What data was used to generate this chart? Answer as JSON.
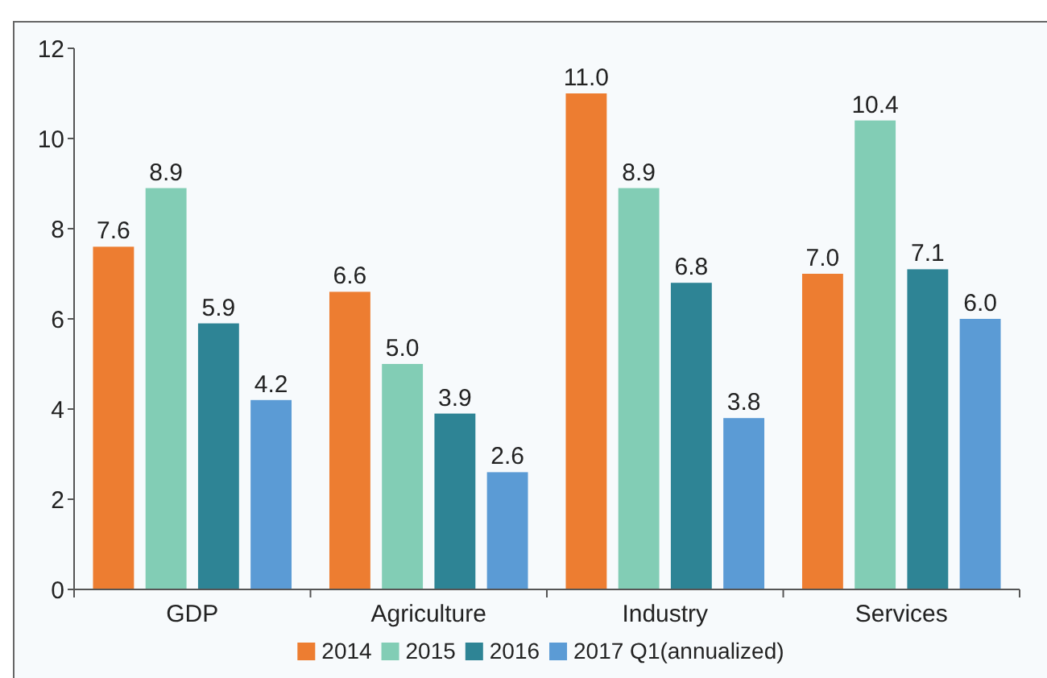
{
  "chart_data": {
    "type": "bar",
    "categories": [
      "GDP",
      "Agriculture",
      "Industry",
      "Services"
    ],
    "series": [
      {
        "name": "2014",
        "color": "#ed7d31",
        "values": [
          7.6,
          6.6,
          11.0,
          7.0
        ],
        "value_labels": [
          "7.6",
          "6.6",
          "11.0",
          "7.0"
        ]
      },
      {
        "name": "2015",
        "color": "#82cdb5",
        "values": [
          8.9,
          5.0,
          8.9,
          10.4
        ],
        "value_labels": [
          "8.9",
          "5.0",
          "8.9",
          "10.4"
        ]
      },
      {
        "name": "2016",
        "color": "#2e8495",
        "values": [
          5.9,
          3.9,
          6.8,
          7.1
        ],
        "value_labels": [
          "5.9",
          "3.9",
          "6.8",
          "7.1"
        ]
      },
      {
        "name": "2017 Q1(annualized)",
        "color": "#5b9bd5",
        "values": [
          4.2,
          2.6,
          3.8,
          6.0
        ],
        "value_labels": [
          "4.2",
          "2.6",
          "3.8",
          "6.0"
        ]
      }
    ],
    "ylim": [
      0,
      12
    ],
    "yticks": [
      0,
      2,
      4,
      6,
      8,
      10,
      12
    ],
    "grid": false,
    "legend": "bottom"
  }
}
